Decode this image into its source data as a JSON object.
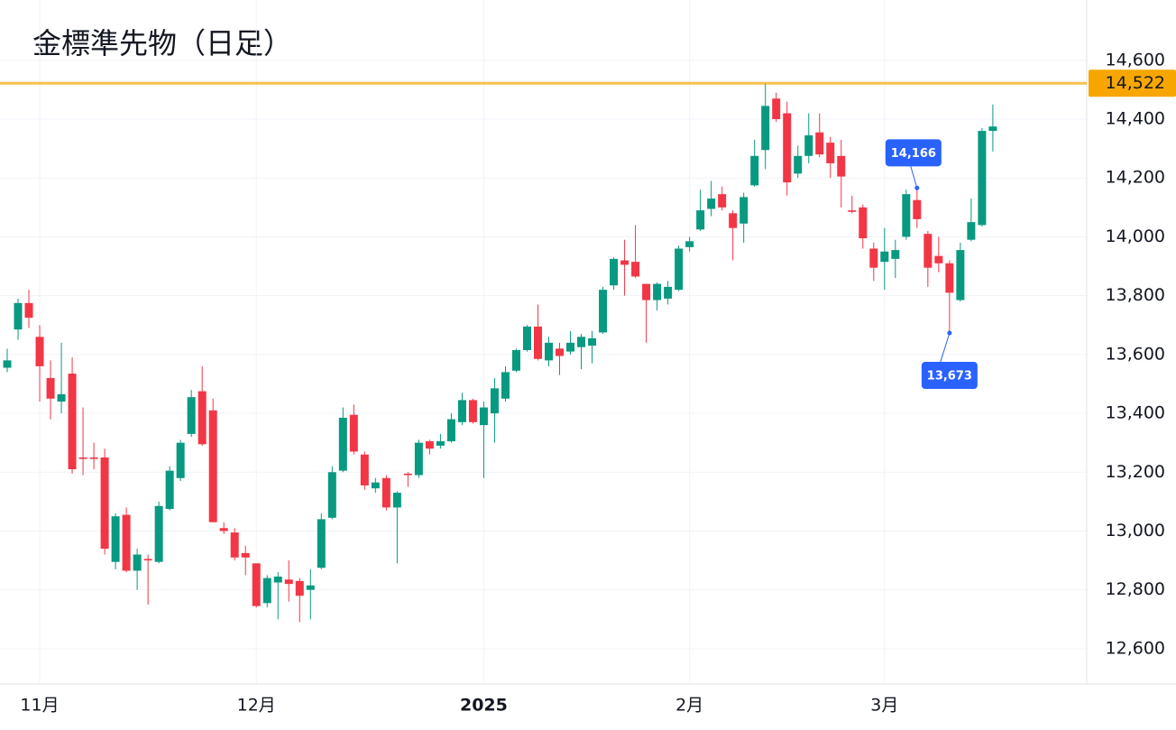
{
  "chart_data": {
    "type": "candlestick",
    "title": "金標準先物（日足）",
    "categories": [
      null,
      null,
      null,
      "11月",
      null,
      null,
      null,
      null,
      null,
      null,
      null,
      null,
      null,
      null,
      null,
      null,
      null,
      null,
      null,
      null,
      null,
      null,
      null,
      "12月",
      null,
      null,
      null,
      null,
      null,
      null,
      null,
      null,
      null,
      null,
      null,
      null,
      null,
      null,
      null,
      null,
      null,
      null,
      null,
      null,
      "2025",
      null,
      null,
      null,
      null,
      null,
      null,
      null,
      null,
      null,
      null,
      null,
      null,
      null,
      null,
      null,
      null,
      null,
      null,
      "2月",
      null,
      null,
      null,
      null,
      null,
      null,
      null,
      null,
      null,
      null,
      null,
      null,
      null,
      null,
      null,
      null,
      null,
      "3月",
      null,
      null,
      null,
      null,
      null,
      null,
      null,
      null,
      null,
      null
    ],
    "series": [
      {
        "name": "open",
        "values": [
          13555,
          13685,
          13775,
          13660,
          13520,
          13440,
          13535,
          13250,
          13250,
          13250,
          12895,
          13055,
          12865,
          12905,
          12895,
          13075,
          13180,
          13330,
          13475,
          13410,
          13010,
          12995,
          12925,
          12890,
          12755,
          12825,
          12835,
          12830,
          12800,
          12875,
          13045,
          13205,
          13395,
          13260,
          13145,
          13180,
          13080,
          13195,
          13190,
          13305,
          13290,
          13305,
          13370,
          13445,
          13360,
          13400,
          13450,
          13545,
          13615,
          13695,
          13580,
          13620,
          13610,
          13625,
          13630,
          13675,
          13835,
          13920,
          13915,
          13840,
          13785,
          13790,
          13820,
          13965,
          14025,
          14095,
          14145,
          14080,
          14045,
          14175,
          14295,
          14470,
          14420,
          14215,
          14275,
          14355,
          14320,
          14275,
          14090,
          14100,
          13960,
          13915,
          13925,
          14000,
          14125,
          14010,
          13935,
          13910,
          13785,
          13990,
          14040,
          14360
        ]
      },
      {
        "name": "high",
        "values": [
          13620,
          13790,
          13820,
          13700,
          13580,
          13640,
          13590,
          13420,
          13300,
          13280,
          13060,
          13080,
          12940,
          12920,
          13100,
          13220,
          13310,
          13480,
          13560,
          13450,
          13030,
          13010,
          12950,
          12890,
          12850,
          12860,
          12900,
          12840,
          12870,
          13060,
          13220,
          13420,
          13430,
          13270,
          13180,
          13190,
          13135,
          13200,
          13310,
          13310,
          13330,
          13400,
          13470,
          13450,
          13440,
          13520,
          13560,
          13620,
          13700,
          13770,
          13660,
          13640,
          13680,
          13670,
          13680,
          13830,
          13930,
          13990,
          14040,
          13840,
          13845,
          13850,
          13970,
          14000,
          14160,
          14190,
          14170,
          14090,
          14150,
          14330,
          14522,
          14490,
          14460,
          14310,
          14420,
          14420,
          14340,
          14330,
          14140,
          14110,
          13980,
          14030,
          13990,
          14160,
          14166,
          14020,
          14000,
          13920,
          13980,
          14130,
          14370,
          14450
        ]
      },
      {
        "name": "low",
        "values": [
          13540,
          13650,
          13690,
          13440,
          13380,
          13400,
          13195,
          13190,
          13210,
          12920,
          12870,
          12860,
          12800,
          12750,
          12890,
          13070,
          13170,
          13320,
          13290,
          13030,
          12990,
          12900,
          12850,
          12740,
          12740,
          12700,
          12760,
          12690,
          12700,
          12870,
          13040,
          13200,
          13260,
          13140,
          13130,
          13070,
          12890,
          13150,
          13180,
          13260,
          13280,
          13300,
          13360,
          13365,
          13180,
          13300,
          13440,
          13540,
          13610,
          13580,
          13560,
          13530,
          13600,
          13550,
          13570,
          13670,
          13820,
          13800,
          13860,
          13640,
          13750,
          13770,
          13815,
          13950,
          14020,
          14070,
          14090,
          13920,
          13980,
          14170,
          14230,
          14390,
          14140,
          14200,
          14250,
          14270,
          14200,
          14100,
          14080,
          13960,
          13850,
          13820,
          13860,
          13990,
          14030,
          13830,
          13880,
          13673,
          13780,
          13985,
          14035,
          14290
        ]
      },
      {
        "name": "close",
        "values": [
          13580,
          13775,
          13725,
          13560,
          13450,
          13465,
          13210,
          13245,
          13245,
          12940,
          13050,
          12865,
          12920,
          12900,
          13085,
          13205,
          13300,
          13455,
          13295,
          13030,
          13000,
          12910,
          12910,
          12745,
          12840,
          12845,
          12820,
          12780,
          12815,
          13040,
          13200,
          13385,
          13270,
          13155,
          13165,
          13080,
          13130,
          13190,
          13300,
          13280,
          13305,
          13380,
          13445,
          13370,
          13420,
          13485,
          13540,
          13615,
          13695,
          13585,
          13640,
          13595,
          13640,
          13660,
          13655,
          13820,
          13925,
          13905,
          13865,
          13785,
          13840,
          13830,
          13960,
          13985,
          14090,
          14130,
          14100,
          14030,
          14135,
          14275,
          14445,
          14400,
          14185,
          14275,
          14345,
          14280,
          14250,
          14205,
          14085,
          13995,
          13895,
          13950,
          13955,
          14145,
          14060,
          13895,
          13910,
          13810,
          13955,
          14050,
          14360,
          14375
        ]
      }
    ],
    "up_color": "#089981",
    "down_color": "#f23645",
    "ylim": [
      12480,
      14805
    ],
    "yticks": [
      {
        "value": 12600,
        "label": "12,600"
      },
      {
        "value": 12800,
        "label": "12,800"
      },
      {
        "value": 13000,
        "label": "13,000"
      },
      {
        "value": 13200,
        "label": "13,200"
      },
      {
        "value": 13400,
        "label": "13,400"
      },
      {
        "value": 13600,
        "label": "13,600"
      },
      {
        "value": 13800,
        "label": "13,800"
      },
      {
        "value": 14000,
        "label": "14,000"
      },
      {
        "value": 14200,
        "label": "14,200"
      },
      {
        "value": 14400,
        "label": "14,400"
      },
      {
        "value": 14600,
        "label": "14,600"
      }
    ],
    "grid": true,
    "price_line": {
      "value": 14522,
      "label": "14,522",
      "color": "#f7a600"
    },
    "annotations": [
      {
        "value": 14166,
        "label": "14,166"
      },
      {
        "value": 13673,
        "label": "13,673"
      }
    ],
    "annotation_color": "#2962ff"
  }
}
